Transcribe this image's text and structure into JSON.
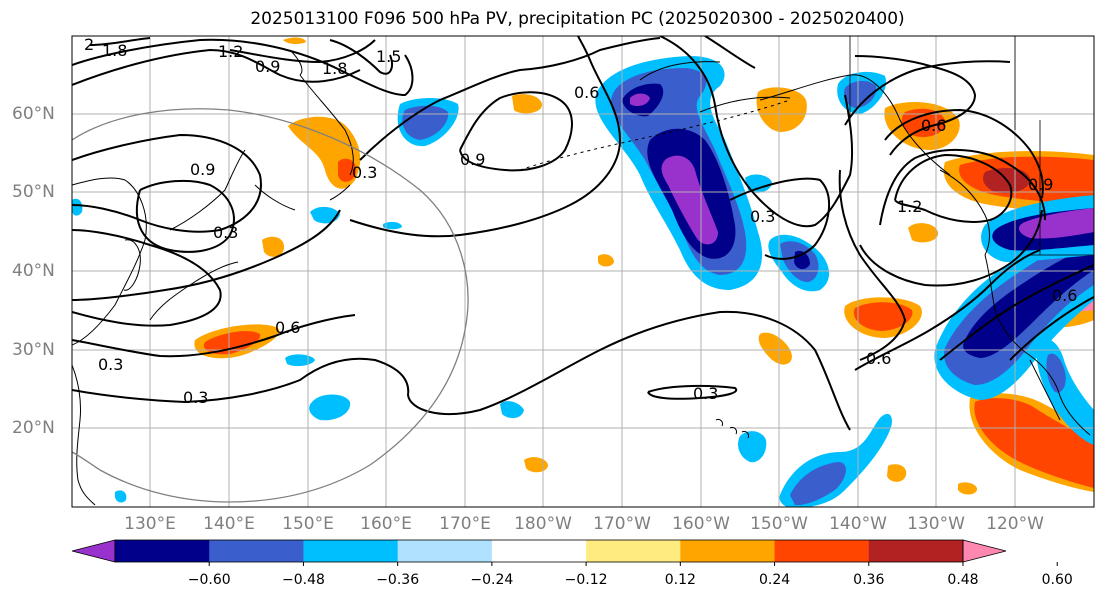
{
  "title": "2025013100 F096 500 hPa PV, precipitation PC (2025020300 - 2025020400)",
  "map": {
    "lat_labels": [
      "60°N",
      "50°N",
      "40°N",
      "30°N",
      "20°N"
    ],
    "lon_labels": [
      "130°E",
      "140°E",
      "150°E",
      "160°E",
      "170°E",
      "180°W",
      "170°W",
      "160°W",
      "150°W",
      "140°W",
      "130°W",
      "120°W"
    ],
    "pv_contour_labels": [
      "2",
      "1.8",
      "1.2",
      "0.9",
      "1.8",
      "1.5",
      "0.6",
      "0.9",
      "0.3",
      "0.9",
      "0.3",
      "0.3",
      "0.6",
      "0.3",
      "0.3",
      "0.3",
      "0.6",
      "0.6",
      "1.2",
      "0.9",
      "0.6"
    ],
    "colors": {
      "contour": "#000000",
      "grid": "#b0b0b0",
      "coast": "#000000",
      "axis_label": "#7f7f7f",
      "circle": "#808080"
    }
  },
  "colorbar": {
    "levels": [
      -0.72,
      -0.6,
      -0.48,
      -0.36,
      -0.24,
      -0.12,
      0.12,
      0.24,
      0.36,
      0.48,
      0.6,
      0.72
    ],
    "tick_labels": [
      "−0.60",
      "−0.48",
      "−0.36",
      "−0.24",
      "−0.12",
      "0.12",
      "0.24",
      "0.36",
      "0.48",
      "0.60"
    ],
    "colors": [
      "#9932cc",
      "#00008b",
      "#3a5fcd",
      "#00bfff",
      "#b0e2ff",
      "#ffffff",
      "#ffeb80",
      "#ffa500",
      "#ff4500",
      "#b22222",
      "#ff88b0"
    ],
    "extend": "both"
  }
}
